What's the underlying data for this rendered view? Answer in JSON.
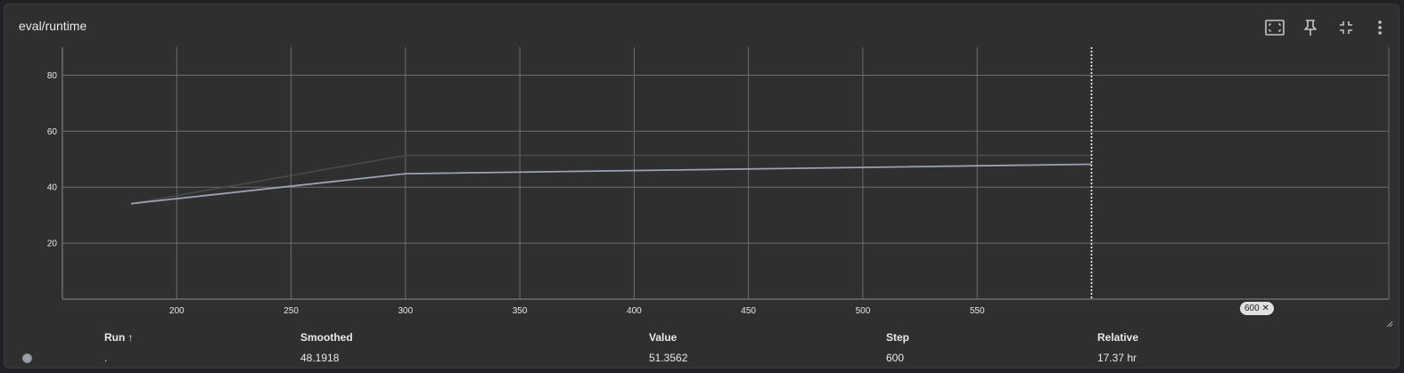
{
  "card": {
    "title": "eval/runtime",
    "toolbar": {
      "fit_icon": "fit-domain-icon",
      "pin_icon": "pin-icon",
      "collapse_icon": "collapse-icon",
      "more_icon": "more-vert-icon"
    }
  },
  "chart_data": {
    "type": "line",
    "title": "eval/runtime",
    "xlabel": "",
    "ylabel": "",
    "xlim": [
      150,
      730
    ],
    "ylim": [
      0,
      90
    ],
    "x_ticks": [
      200,
      250,
      300,
      350,
      400,
      450,
      500,
      550
    ],
    "y_ticks": [
      20,
      40,
      60,
      80
    ],
    "grid": true,
    "series": [
      {
        "role": "raw",
        "color": "#4a4a4a",
        "x": [
          180,
          300,
          600
        ],
        "y": [
          34.1,
          51.3562,
          51.3562
        ]
      },
      {
        "role": "smoothed",
        "color": "#9aa4b1",
        "x": [
          180,
          300,
          600
        ],
        "y": [
          34.1,
          44.8,
          48.1918
        ]
      }
    ],
    "cursor_step": 600,
    "cursor_label": "600"
  },
  "table": {
    "headers": {
      "run": "Run",
      "sort_arrow": "↑",
      "smoothed": "Smoothed",
      "value": "Value",
      "step": "Step",
      "relative": "Relative"
    },
    "rows": [
      {
        "color": "#9aa0a6",
        "run": ".",
        "smoothed": "48.1918",
        "value": "51.3562",
        "step": "600",
        "relative": "17.37 hr"
      }
    ]
  }
}
